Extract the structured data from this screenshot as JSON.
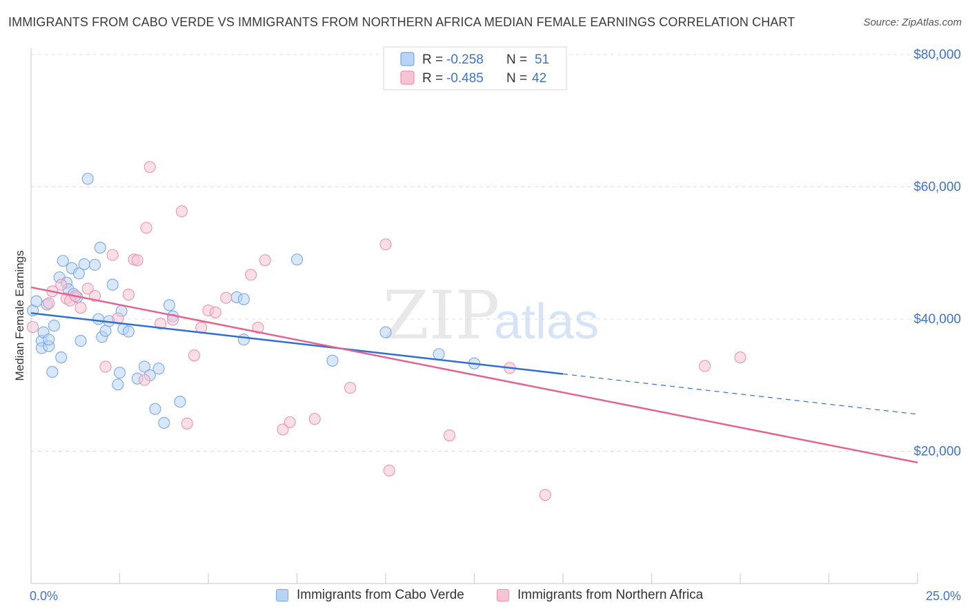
{
  "title": "IMMIGRANTS FROM CABO VERDE VS IMMIGRANTS FROM NORTHERN AFRICA MEDIAN FEMALE EARNINGS CORRELATION CHART",
  "source": "Source: ZipAtlas.com",
  "watermark": {
    "zip": "ZIP",
    "atlas": "atlas"
  },
  "colors": {
    "blue_fill": "#b8d3f5",
    "blue_stroke": "#7aa8e0",
    "blue_line": "#2f6fd1",
    "pink_fill": "#f8c4d4",
    "pink_stroke": "#ec93b0",
    "pink_line": "#e2648f",
    "axis_text": "#3e74c9",
    "grid": "#dddddd"
  },
  "legend_top": {
    "rows": [
      {
        "r_label": "R =",
        "r_value": "-0.258",
        "n_label": "N =",
        "n_value": "51"
      },
      {
        "r_label": "R =",
        "r_value": "-0.485",
        "n_label": "N =",
        "n_value": "42"
      }
    ]
  },
  "legend_bottom": {
    "items": [
      "Immigrants from Cabo Verde",
      "Immigrants from Northern Africa"
    ]
  },
  "chart_data": {
    "type": "scatter",
    "title": "IMMIGRANTS FROM CABO VERDE VS IMMIGRANTS FROM NORTHERN AFRICA MEDIAN FEMALE EARNINGS CORRELATION CHART",
    "xlabel": "",
    "ylabel": "Median Female Earnings",
    "xlim": [
      0,
      25
    ],
    "ylim": [
      0,
      82000
    ],
    "x_tick_labels": {
      "left": "0.0%",
      "right": "25.0%"
    },
    "y_ticks": [
      20000,
      40000,
      60000,
      80000
    ],
    "y_tick_labels": [
      "$20,000",
      "$40,000",
      "$60,000",
      "$80,000"
    ],
    "series": [
      {
        "name": "Immigrants from Cabo Verde",
        "R": -0.258,
        "N": 51,
        "trend": {
          "x_start": 0,
          "y_start": 40900,
          "x_solid_end": 15,
          "y_solid_end": 31700,
          "x_end": 25,
          "y_end": 25600
        },
        "points": [
          [
            0.05,
            41300
          ],
          [
            0.15,
            42700
          ],
          [
            0.3,
            36700
          ],
          [
            0.3,
            35600
          ],
          [
            0.35,
            38000
          ],
          [
            0.45,
            42200
          ],
          [
            0.5,
            35900
          ],
          [
            0.5,
            36900
          ],
          [
            0.6,
            32000
          ],
          [
            0.65,
            39000
          ],
          [
            0.8,
            46300
          ],
          [
            0.85,
            34200
          ],
          [
            0.9,
            48800
          ],
          [
            1.0,
            45500
          ],
          [
            1.05,
            44500
          ],
          [
            1.15,
            47700
          ],
          [
            1.2,
            43800
          ],
          [
            1.3,
            43300
          ],
          [
            1.35,
            46900
          ],
          [
            1.4,
            36700
          ],
          [
            1.5,
            48300
          ],
          [
            1.6,
            61200
          ],
          [
            1.8,
            48200
          ],
          [
            1.9,
            40000
          ],
          [
            1.95,
            50800
          ],
          [
            2.0,
            37300
          ],
          [
            2.1,
            38200
          ],
          [
            2.2,
            39700
          ],
          [
            2.3,
            45200
          ],
          [
            2.45,
            30100
          ],
          [
            2.5,
            31900
          ],
          [
            2.55,
            41200
          ],
          [
            2.6,
            38500
          ],
          [
            2.75,
            38100
          ],
          [
            3.0,
            31000
          ],
          [
            3.2,
            32800
          ],
          [
            3.35,
            31500
          ],
          [
            3.5,
            26400
          ],
          [
            3.6,
            32500
          ],
          [
            3.75,
            24300
          ],
          [
            3.9,
            42100
          ],
          [
            4.0,
            40400
          ],
          [
            4.2,
            27500
          ],
          [
            5.8,
            43300
          ],
          [
            6.0,
            43000
          ],
          [
            6.0,
            36900
          ],
          [
            7.5,
            49000
          ],
          [
            8.5,
            33700
          ],
          [
            10.0,
            38000
          ],
          [
            11.5,
            34700
          ],
          [
            12.5,
            33300
          ]
        ]
      },
      {
        "name": "Immigrants from Northern Africa",
        "R": -0.485,
        "N": 42,
        "trend": {
          "x_start": 0,
          "y_start": 44800,
          "x_end": 25,
          "y_end": 18300
        },
        "points": [
          [
            0.05,
            38800
          ],
          [
            0.5,
            42400
          ],
          [
            0.6,
            44200
          ],
          [
            0.85,
            45200
          ],
          [
            1.0,
            43100
          ],
          [
            1.1,
            42800
          ],
          [
            1.25,
            43500
          ],
          [
            1.4,
            41700
          ],
          [
            1.6,
            44600
          ],
          [
            1.8,
            43500
          ],
          [
            2.1,
            32800
          ],
          [
            2.3,
            49700
          ],
          [
            2.45,
            40100
          ],
          [
            2.75,
            43700
          ],
          [
            2.9,
            49000
          ],
          [
            3.0,
            48900
          ],
          [
            3.2,
            30800
          ],
          [
            3.25,
            53800
          ],
          [
            3.35,
            63000
          ],
          [
            3.65,
            39300
          ],
          [
            4.0,
            39900
          ],
          [
            4.25,
            56300
          ],
          [
            4.4,
            24200
          ],
          [
            4.6,
            34500
          ],
          [
            4.8,
            38700
          ],
          [
            5.0,
            41300
          ],
          [
            5.2,
            41000
          ],
          [
            5.5,
            43200
          ],
          [
            6.2,
            46700
          ],
          [
            6.4,
            38700
          ],
          [
            6.6,
            48900
          ],
          [
            7.1,
            23300
          ],
          [
            7.3,
            24400
          ],
          [
            8.0,
            24900
          ],
          [
            9.0,
            29600
          ],
          [
            10.0,
            51300
          ],
          [
            10.1,
            17100
          ],
          [
            11.8,
            22400
          ],
          [
            13.5,
            32600
          ],
          [
            14.5,
            13400
          ],
          [
            19.0,
            32900
          ],
          [
            20.0,
            34200
          ]
        ]
      }
    ]
  }
}
